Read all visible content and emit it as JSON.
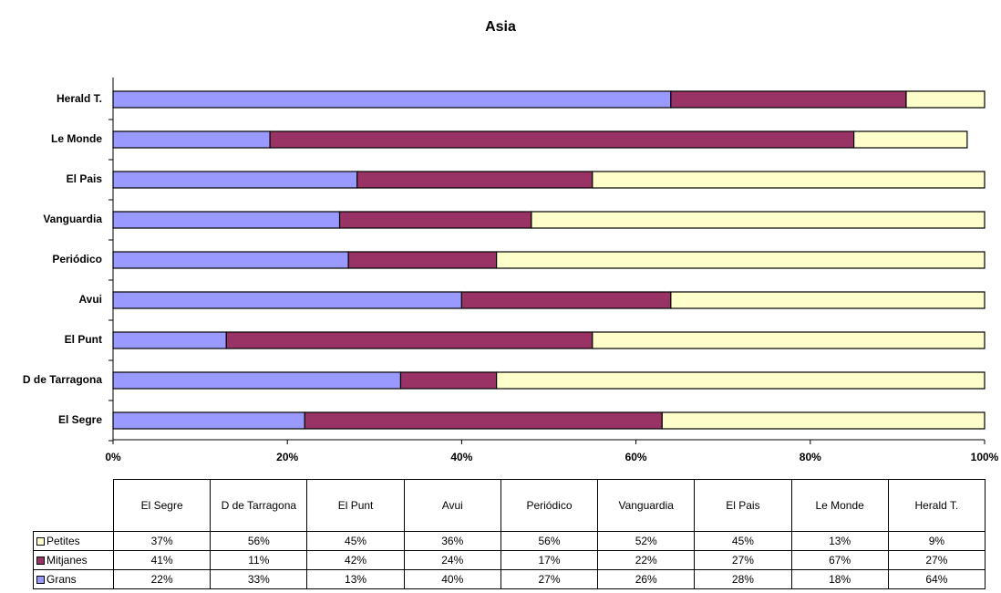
{
  "chart_data": {
    "type": "stacked_barh",
    "title": "Asia",
    "categories": [
      "El Segre",
      "D de Tarragona",
      "El Punt",
      "Avui",
      "Periódico",
      "Vanguardia",
      "El Pais",
      "Le Monde",
      "Herald T."
    ],
    "series": [
      {
        "name": "Grans",
        "color": "#9999ff",
        "values": [
          22,
          33,
          13,
          40,
          27,
          26,
          28,
          18,
          64
        ],
        "value_labels": [
          "22%",
          "33%",
          "13%",
          "40%",
          "27%",
          "26%",
          "28%",
          "18%",
          "64%"
        ]
      },
      {
        "name": "Mitjanes",
        "color": "#993366",
        "values": [
          41,
          11,
          42,
          24,
          17,
          22,
          27,
          67,
          27
        ],
        "value_labels": [
          "41%",
          "11%",
          "42%",
          "24%",
          "17%",
          "22%",
          "27%",
          "67%",
          "27%"
        ]
      },
      {
        "name": "Petites",
        "color": "#ffffcc",
        "values": [
          37,
          56,
          45,
          36,
          56,
          52,
          45,
          13,
          9
        ],
        "value_labels": [
          "37%",
          "56%",
          "45%",
          "36%",
          "56%",
          "52%",
          "45%",
          "13%",
          "9%"
        ]
      }
    ],
    "xlim": [
      0,
      100
    ],
    "xticks": [
      {
        "value": 0,
        "label": "0%"
      },
      {
        "value": 20,
        "label": "20%"
      },
      {
        "value": 40,
        "label": "40%"
      },
      {
        "value": 60,
        "label": "60%"
      },
      {
        "value": 80,
        "label": "80%"
      },
      {
        "value": 100,
        "label": "100%"
      }
    ]
  }
}
